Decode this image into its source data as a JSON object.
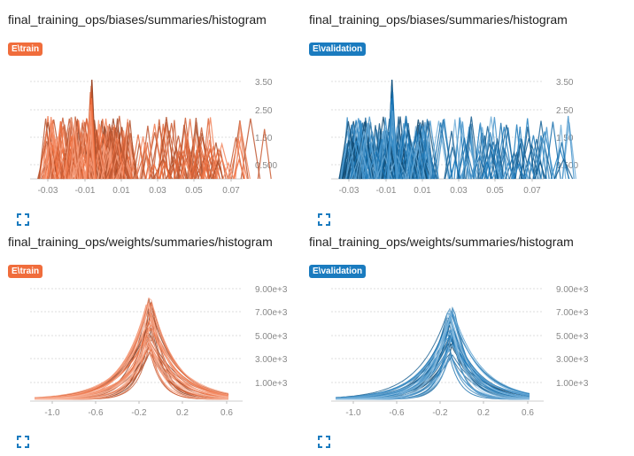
{
  "cards": [
    {
      "title": "final_training_ops/biases/summaries/histogram",
      "run": "E\\train",
      "color": "#f06d3c",
      "kind": "biases",
      "x_ticks": [
        "-0.03",
        "-0.01",
        "0.01",
        "0.03",
        "0.05",
        "0.07"
      ],
      "y_ticks": [
        "3.50",
        "2.50",
        "1.50",
        "0.500"
      ]
    },
    {
      "title": "final_training_ops/biases/summaries/histogram",
      "run": "E\\validation",
      "color": "#1a7bbf",
      "kind": "biases",
      "x_ticks": [
        "-0.03",
        "-0.01",
        "0.01",
        "0.03",
        "0.05",
        "0.07"
      ],
      "y_ticks": [
        "3.50",
        "2.50",
        "1.50",
        "0.500"
      ]
    },
    {
      "title": "final_training_ops/weights/summaries/histogram",
      "run": "E\\train",
      "color": "#f06d3c",
      "kind": "weights",
      "x_ticks": [
        "-1.0",
        "-0.6",
        "-0.2",
        "0.2",
        "0.6"
      ],
      "y_ticks": [
        "9.00e+3",
        "7.00e+3",
        "5.00e+3",
        "3.00e+3",
        "1.00e+3"
      ]
    },
    {
      "title": "final_training_ops/weights/summaries/histogram",
      "run": "E\\validation",
      "color": "#1a7bbf",
      "kind": "weights",
      "x_ticks": [
        "-1.0",
        "-0.6",
        "-0.2",
        "0.2",
        "0.6"
      ],
      "y_ticks": [
        "9.00e+3",
        "7.00e+3",
        "5.00e+3",
        "3.00e+3",
        "1.00e+3"
      ]
    }
  ],
  "icons": {
    "expand": "fullscreen-icon"
  }
}
